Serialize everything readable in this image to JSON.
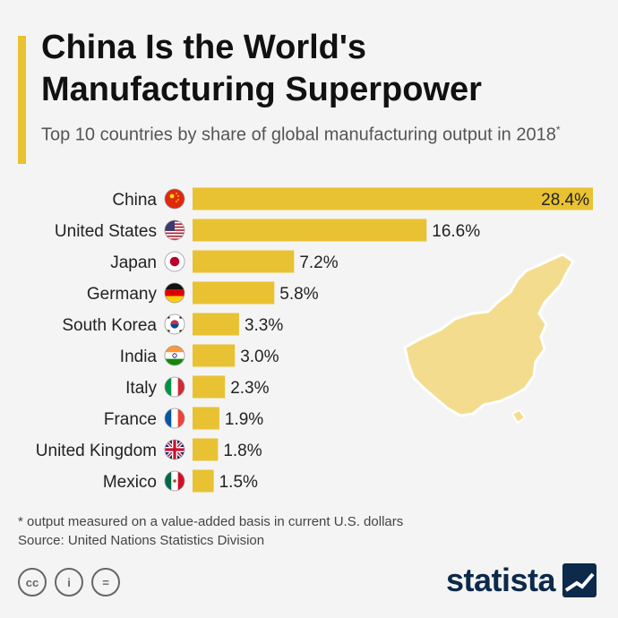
{
  "header": {
    "title": "China Is the World's Manufacturing Superpower",
    "subtitle": "Top 10 countries by share of global manufacturing output in 2018",
    "subtitle_marker": "*"
  },
  "chart_data": {
    "type": "bar",
    "orientation": "horizontal",
    "categories": [
      "China",
      "United States",
      "Japan",
      "Germany",
      "South Korea",
      "India",
      "Italy",
      "France",
      "United Kingdom",
      "Mexico"
    ],
    "values": [
      28.4,
      16.6,
      7.2,
      5.8,
      3.3,
      3.0,
      2.3,
      1.9,
      1.8,
      1.5
    ],
    "value_labels": [
      "28.4%",
      "16.6%",
      "7.2%",
      "5.8%",
      "3.3%",
      "3.0%",
      "2.3%",
      "1.9%",
      "1.8%",
      "1.5%"
    ],
    "flag_icons": [
      "china-flag-icon",
      "us-flag-icon",
      "japan-flag-icon",
      "germany-flag-icon",
      "south-korea-flag-icon",
      "india-flag-icon",
      "italy-flag-icon",
      "france-flag-icon",
      "uk-flag-icon",
      "mexico-flag-icon"
    ],
    "bar_color": "#e8c232",
    "xlim": [
      0,
      28.4
    ],
    "grid": false,
    "legend": "none"
  },
  "decoration": {
    "map_icon": "china-map-icon",
    "map_color": "#f3dc8e"
  },
  "footer": {
    "footnote": "* output measured on a value-added basis in current U.S. dollars",
    "source": "Source: United Nations Statistics Division",
    "license_icons": [
      "cc-icon",
      "attribution-icon",
      "no-derivatives-icon"
    ],
    "license_labels": [
      "cc",
      "i",
      "="
    ],
    "brand": "statista",
    "brand_icon": "statista-logo-icon"
  }
}
